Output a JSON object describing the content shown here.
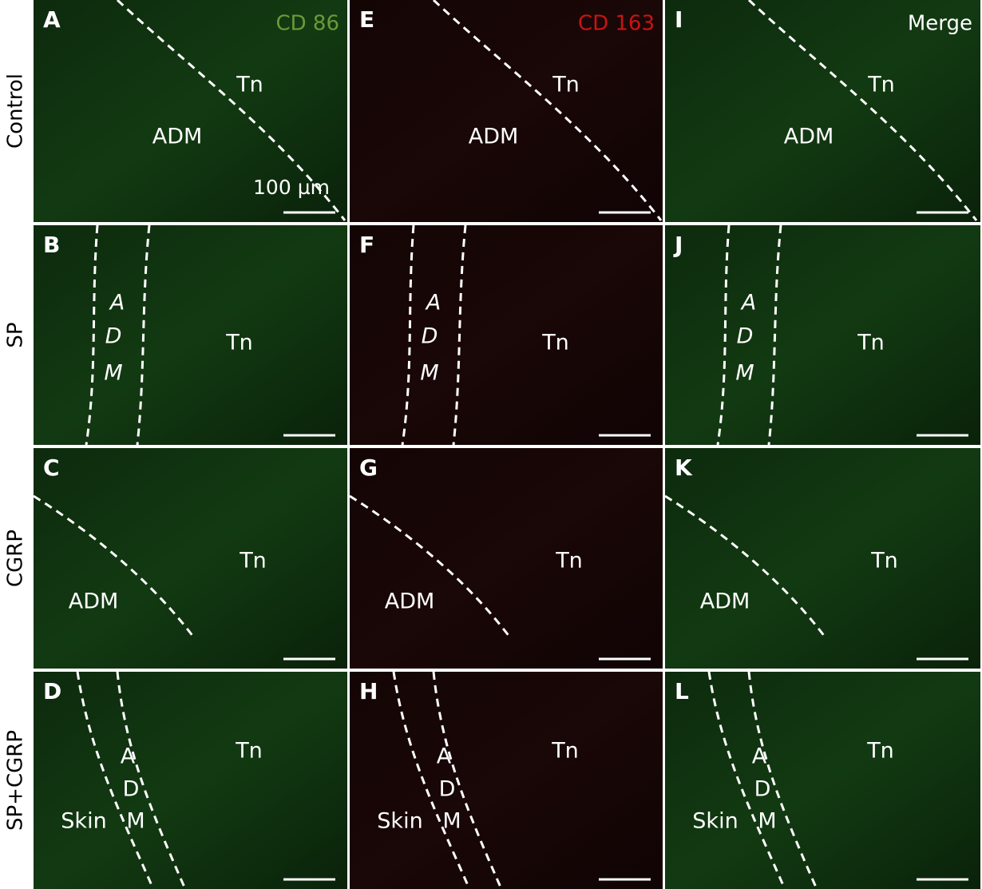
{
  "row_labels": [
    "Control",
    "SP",
    "CGRP",
    "SP+CGRP"
  ],
  "channel_labels": [
    "CD 86",
    "CD 163",
    "Merge"
  ],
  "scale_bar_label": "100 µm",
  "panels": [
    [
      {
        "letter": "A",
        "texts": [
          "Tn",
          "ADM"
        ]
      },
      {
        "letter": "E",
        "texts": [
          "Tn",
          "ADM"
        ]
      },
      {
        "letter": "I",
        "texts": [
          "Tn",
          "ADM"
        ]
      }
    ],
    [
      {
        "letter": "B",
        "texts": [
          "A",
          "D",
          "M",
          "Tn"
        ]
      },
      {
        "letter": "F",
        "texts": [
          "A",
          "D",
          "M",
          "Tn"
        ]
      },
      {
        "letter": "J",
        "texts": [
          "A",
          "D",
          "M",
          "Tn"
        ]
      }
    ],
    [
      {
        "letter": "C",
        "texts": [
          "Tn",
          "ADM"
        ]
      },
      {
        "letter": "G",
        "texts": [
          "Tn",
          "ADM"
        ]
      },
      {
        "letter": "K",
        "texts": [
          "Tn",
          "ADM"
        ]
      }
    ],
    [
      {
        "letter": "D",
        "texts": [
          "Tn",
          "A",
          "D",
          "M",
          "Skin"
        ]
      },
      {
        "letter": "H",
        "texts": [
          "Tn",
          "A",
          "D",
          "M",
          "Skin"
        ]
      },
      {
        "letter": "L",
        "texts": [
          "Tn",
          "A",
          "D",
          "M",
          "Skin"
        ]
      }
    ]
  ]
}
